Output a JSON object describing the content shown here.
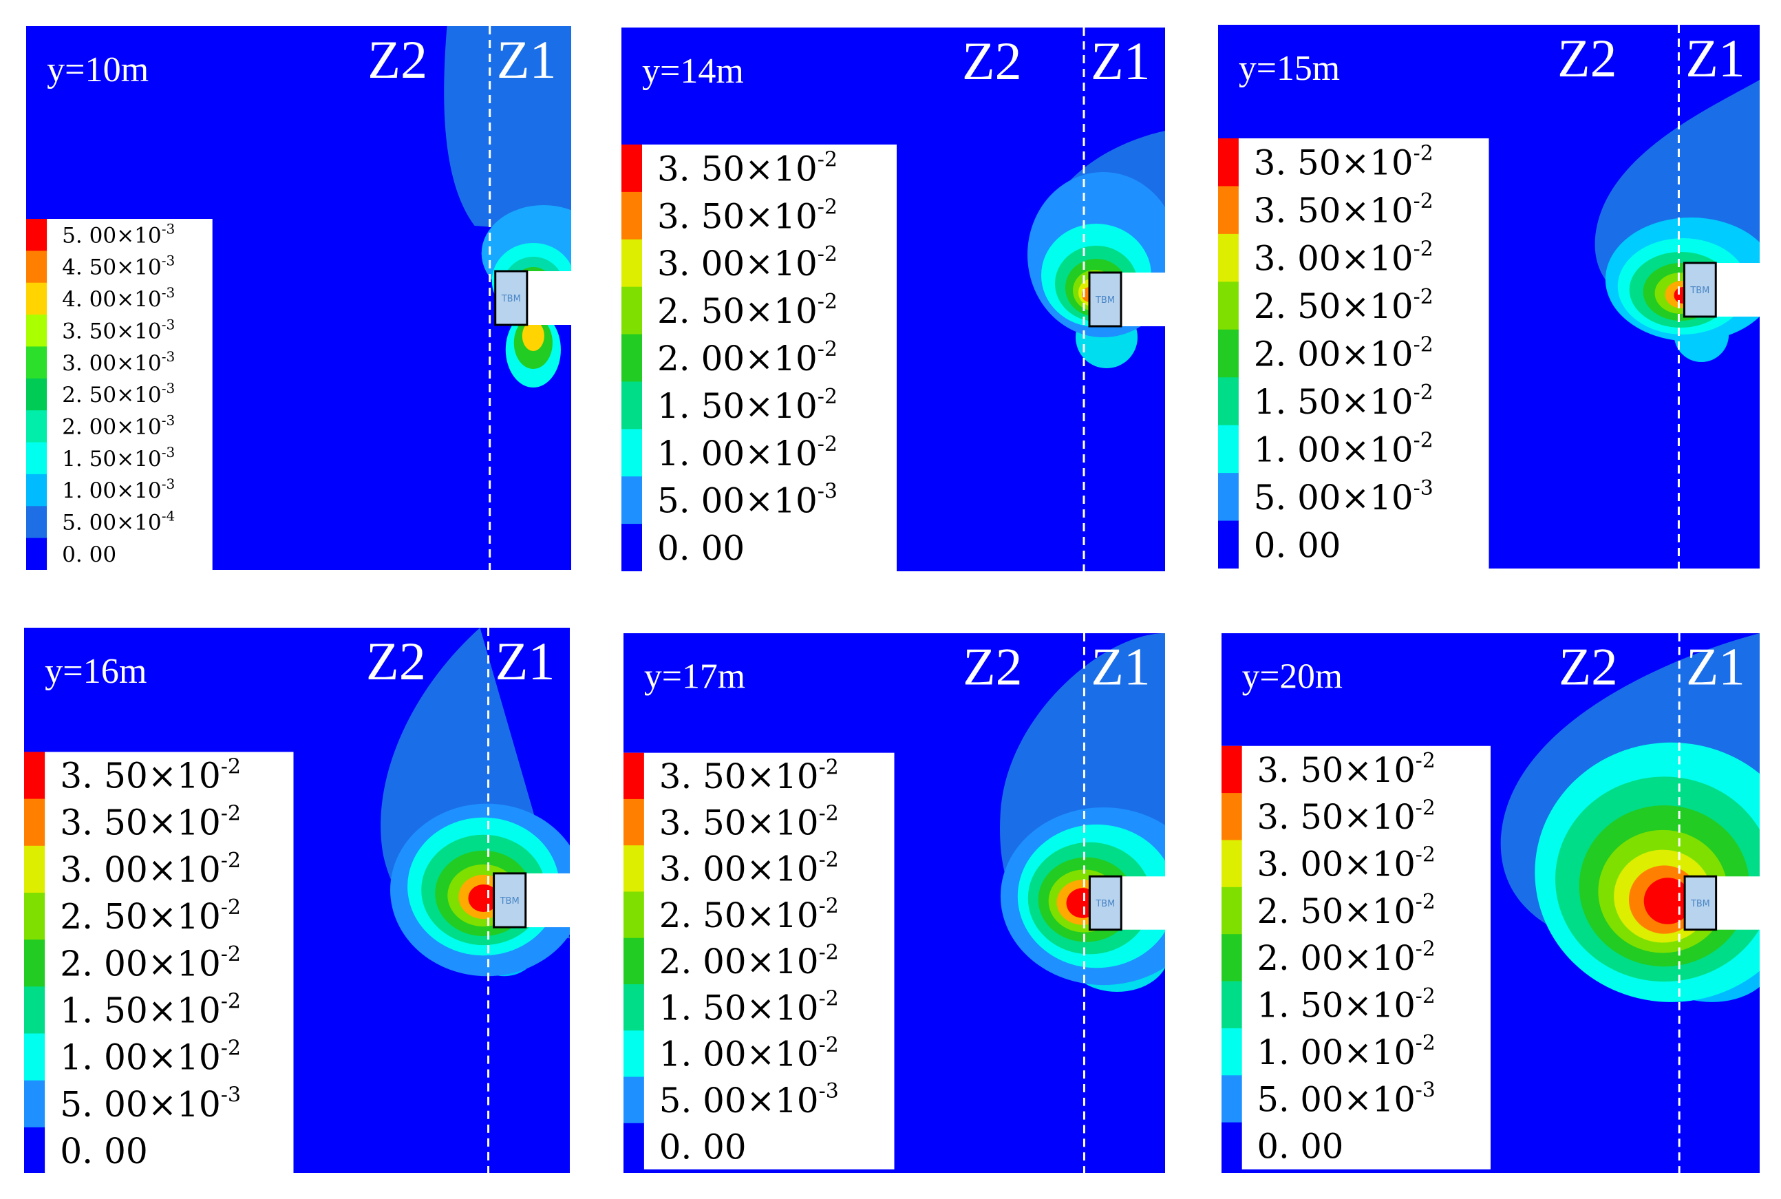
{
  "figure": {
    "panels": [
      {
        "label": "y=10m",
        "zone_left": "Z2",
        "zone_right": "Z1",
        "machine": "TBM",
        "legend": [
          {
            "mant": "5. 00",
            "exp": "-3",
            "color": "#ff0000"
          },
          {
            "mant": "4. 50",
            "exp": "-3",
            "color": "#ff7f00"
          },
          {
            "mant": "4. 00",
            "exp": "-3",
            "color": "#ffd400"
          },
          {
            "mant": "3. 50",
            "exp": "-3",
            "color": "#aaff00"
          },
          {
            "mant": "3. 00",
            "exp": "-3",
            "color": "#2bdf2b"
          },
          {
            "mant": "2. 50",
            "exp": "-3",
            "color": "#00cc55"
          },
          {
            "mant": "2. 00",
            "exp": "-3",
            "color": "#00eeaa"
          },
          {
            "mant": "1. 50",
            "exp": "-3",
            "color": "#00ffee"
          },
          {
            "mant": "1. 00",
            "exp": "-3",
            "color": "#00bbff"
          },
          {
            "mant": "5. 00",
            "exp": "-4",
            "color": "#1e6fe6"
          },
          {
            "mant": "0. 00",
            "exp": "",
            "color": "#0000ff"
          }
        ]
      },
      {
        "label": "y=14m",
        "zone_left": "Z2",
        "zone_right": "Z1",
        "machine": "TBM",
        "legend": [
          {
            "mant": "3. 50",
            "exp": "-2",
            "color": "#ff0000"
          },
          {
            "mant": "3. 50",
            "exp": "-2",
            "color": "#ff8000"
          },
          {
            "mant": "3. 00",
            "exp": "-2",
            "color": "#ddee00"
          },
          {
            "mant": "2. 50",
            "exp": "-2",
            "color": "#7fe000"
          },
          {
            "mant": "2. 00",
            "exp": "-2",
            "color": "#22cc22"
          },
          {
            "mant": "1. 50",
            "exp": "-2",
            "color": "#00dd88"
          },
          {
            "mant": "1. 00",
            "exp": "-2",
            "color": "#00ffee"
          },
          {
            "mant": "5. 00",
            "exp": "-3",
            "color": "#1e90ff"
          },
          {
            "mant": "0. 00",
            "exp": "",
            "color": "#0000ff"
          }
        ]
      },
      {
        "label": "y=15m",
        "zone_left": "Z2",
        "zone_right": "Z1",
        "machine": "TBM",
        "legend": [
          {
            "mant": "3. 50",
            "exp": "-2",
            "color": "#ff0000"
          },
          {
            "mant": "3. 50",
            "exp": "-2",
            "color": "#ff8000"
          },
          {
            "mant": "3. 00",
            "exp": "-2",
            "color": "#ddee00"
          },
          {
            "mant": "2. 50",
            "exp": "-2",
            "color": "#7fe000"
          },
          {
            "mant": "2. 00",
            "exp": "-2",
            "color": "#22cc22"
          },
          {
            "mant": "1. 50",
            "exp": "-2",
            "color": "#00dd88"
          },
          {
            "mant": "1. 00",
            "exp": "-2",
            "color": "#00ffee"
          },
          {
            "mant": "5. 00",
            "exp": "-3",
            "color": "#1e90ff"
          },
          {
            "mant": "0. 00",
            "exp": "",
            "color": "#0000ff"
          }
        ]
      },
      {
        "label": "y=16m",
        "zone_left": "Z2",
        "zone_right": "Z1",
        "machine": "TBM",
        "legend": [
          {
            "mant": "3. 50",
            "exp": "-2",
            "color": "#ff0000"
          },
          {
            "mant": "3. 50",
            "exp": "-2",
            "color": "#ff8000"
          },
          {
            "mant": "3. 00",
            "exp": "-2",
            "color": "#ddee00"
          },
          {
            "mant": "2. 50",
            "exp": "-2",
            "color": "#7fe000"
          },
          {
            "mant": "2. 00",
            "exp": "-2",
            "color": "#22cc22"
          },
          {
            "mant": "1. 50",
            "exp": "-2",
            "color": "#00dd88"
          },
          {
            "mant": "1. 00",
            "exp": "-2",
            "color": "#00ffee"
          },
          {
            "mant": "5. 00",
            "exp": "-3",
            "color": "#1e90ff"
          },
          {
            "mant": "0. 00",
            "exp": "",
            "color": "#0000ff"
          }
        ]
      },
      {
        "label": "y=17m",
        "zone_left": "Z2",
        "zone_right": "Z1",
        "machine": "TBM",
        "legend": [
          {
            "mant": "3. 50",
            "exp": "-2",
            "color": "#ff0000"
          },
          {
            "mant": "3. 50",
            "exp": "-2",
            "color": "#ff8000"
          },
          {
            "mant": "3. 00",
            "exp": "-2",
            "color": "#ddee00"
          },
          {
            "mant": "2. 50",
            "exp": "-2",
            "color": "#7fe000"
          },
          {
            "mant": "2. 00",
            "exp": "-2",
            "color": "#22cc22"
          },
          {
            "mant": "1. 50",
            "exp": "-2",
            "color": "#00dd88"
          },
          {
            "mant": "1. 00",
            "exp": "-2",
            "color": "#00ffee"
          },
          {
            "mant": "5. 00",
            "exp": "-3",
            "color": "#1e90ff"
          },
          {
            "mant": "0. 00",
            "exp": "",
            "color": "#0000ff"
          }
        ]
      },
      {
        "label": "y=20m",
        "zone_left": "Z2",
        "zone_right": "Z1",
        "machine": "TBM",
        "legend": [
          {
            "mant": "3. 50",
            "exp": "-2",
            "color": "#ff0000"
          },
          {
            "mant": "3. 50",
            "exp": "-2",
            "color": "#ff8000"
          },
          {
            "mant": "3. 00",
            "exp": "-2",
            "color": "#ddee00"
          },
          {
            "mant": "2. 50",
            "exp": "-2",
            "color": "#7fe000"
          },
          {
            "mant": "2. 00",
            "exp": "-2",
            "color": "#22cc22"
          },
          {
            "mant": "1. 50",
            "exp": "-2",
            "color": "#00dd88"
          },
          {
            "mant": "1. 00",
            "exp": "-2",
            "color": "#00ffee"
          },
          {
            "mant": "5. 00",
            "exp": "-3",
            "color": "#1e90ff"
          },
          {
            "mant": "0. 00",
            "exp": "",
            "color": "#0000ff"
          }
        ]
      }
    ]
  },
  "chart_data": [
    {
      "type": "heatmap",
      "title": "y=10m",
      "zones": [
        "Z2",
        "Z1"
      ],
      "colorbar_levels": [
        0.0,
        0.0005,
        0.001,
        0.0015,
        0.002,
        0.0025,
        0.003,
        0.0035,
        0.004,
        0.0045,
        0.005
      ],
      "colorbar_labels": [
        "0. 00",
        "5. 00×10-4",
        "1. 00×10-3",
        "1. 50×10-3",
        "2. 00×10-3",
        "2. 50×10-3",
        "3. 00×10-3",
        "3. 50×10-3",
        "4. 00×10-3",
        "4. 50×10-3",
        "5. 00×10-3"
      ]
    },
    {
      "type": "heatmap",
      "title": "y=14m",
      "zones": [
        "Z2",
        "Z1"
      ],
      "colorbar_levels": [
        0.0,
        0.005,
        0.01,
        0.015,
        0.02,
        0.025,
        0.03,
        0.035,
        0.035
      ],
      "colorbar_labels": [
        "0. 00",
        "5. 00×10-3",
        "1. 00×10-2",
        "1. 50×10-2",
        "2. 00×10-2",
        "2. 50×10-2",
        "3. 00×10-2",
        "3. 50×10-2",
        "3. 50×10-2"
      ]
    },
    {
      "type": "heatmap",
      "title": "y=15m",
      "zones": [
        "Z2",
        "Z1"
      ],
      "colorbar_levels": [
        0.0,
        0.005,
        0.01,
        0.015,
        0.02,
        0.025,
        0.03,
        0.035,
        0.035
      ],
      "colorbar_labels": [
        "0. 00",
        "5. 00×10-3",
        "1. 00×10-2",
        "1. 50×10-2",
        "2. 00×10-2",
        "2. 50×10-2",
        "3. 00×10-2",
        "3. 50×10-2",
        "3. 50×10-2"
      ]
    },
    {
      "type": "heatmap",
      "title": "y=16m",
      "zones": [
        "Z2",
        "Z1"
      ],
      "colorbar_levels": [
        0.0,
        0.005,
        0.01,
        0.015,
        0.02,
        0.025,
        0.03,
        0.035,
        0.035
      ],
      "colorbar_labels": [
        "0. 00",
        "5. 00×10-3",
        "1. 00×10-2",
        "1. 50×10-2",
        "2. 00×10-2",
        "2. 50×10-2",
        "3. 00×10-2",
        "3. 50×10-2",
        "3. 50×10-2"
      ]
    },
    {
      "type": "heatmap",
      "title": "y=17m",
      "zones": [
        "Z2",
        "Z1"
      ],
      "colorbar_levels": [
        0.0,
        0.005,
        0.01,
        0.015,
        0.02,
        0.025,
        0.03,
        0.035,
        0.035
      ],
      "colorbar_labels": [
        "0. 00",
        "5. 00×10-3",
        "1. 00×10-2",
        "1. 50×10-2",
        "2. 00×10-2",
        "2. 50×10-2",
        "3. 00×10-2",
        "3. 50×10-2",
        "3. 50×10-2"
      ]
    },
    {
      "type": "heatmap",
      "title": "y=20m",
      "zones": [
        "Z2",
        "Z1"
      ],
      "colorbar_levels": [
        0.0,
        0.005,
        0.01,
        0.015,
        0.02,
        0.025,
        0.03,
        0.035,
        0.035
      ],
      "colorbar_labels": [
        "0. 00",
        "5. 00×10-3",
        "1. 00×10-2",
        "1. 50×10-2",
        "2. 00×10-2",
        "2. 50×10-2",
        "3. 00×10-2",
        "3. 50×10-2",
        "3. 50×10-2"
      ]
    }
  ]
}
